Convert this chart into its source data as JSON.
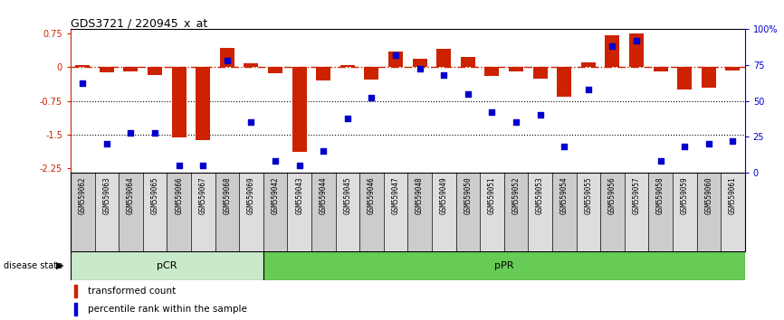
{
  "title": "GDS3721 / 220945_x_at",
  "samples": [
    "GSM559062",
    "GSM559063",
    "GSM559064",
    "GSM559065",
    "GSM559066",
    "GSM559067",
    "GSM559068",
    "GSM559069",
    "GSM559042",
    "GSM559043",
    "GSM559044",
    "GSM559045",
    "GSM559046",
    "GSM559047",
    "GSM559048",
    "GSM559049",
    "GSM559050",
    "GSM559051",
    "GSM559052",
    "GSM559053",
    "GSM559054",
    "GSM559055",
    "GSM559056",
    "GSM559057",
    "GSM559058",
    "GSM559059",
    "GSM559060",
    "GSM559061"
  ],
  "bar_values": [
    0.05,
    -0.12,
    -0.1,
    -0.18,
    -1.57,
    -1.62,
    0.42,
    0.08,
    -0.13,
    -1.88,
    -0.3,
    0.05,
    -0.28,
    0.35,
    0.18,
    0.4,
    0.22,
    -0.2,
    -0.1,
    -0.25,
    -0.65,
    0.1,
    0.7,
    0.75,
    -0.1,
    -0.5,
    -0.45,
    -0.08
  ],
  "percentile_values": [
    62,
    20,
    28,
    28,
    5,
    5,
    78,
    35,
    8,
    5,
    15,
    38,
    52,
    82,
    72,
    68,
    55,
    42,
    35,
    40,
    18,
    58,
    88,
    92,
    8,
    18,
    20,
    22
  ],
  "pCR_count": 8,
  "pPR_count": 20,
  "ylim_left": [
    -2.35,
    0.85
  ],
  "yticks_left": [
    0.75,
    0.0,
    -0.75,
    -1.5,
    -2.25
  ],
  "yticks_right": [
    100,
    75,
    50,
    25,
    0
  ],
  "bar_color": "#cc2200",
  "dot_color": "#0000cc",
  "pCR_color": "#c8eac8",
  "pPR_color": "#66cc55",
  "col_bg_even": "#cccccc",
  "col_bg_odd": "#dddddd",
  "legend_bar_label": "transformed count",
  "legend_dot_label": "percentile rank within the sample"
}
